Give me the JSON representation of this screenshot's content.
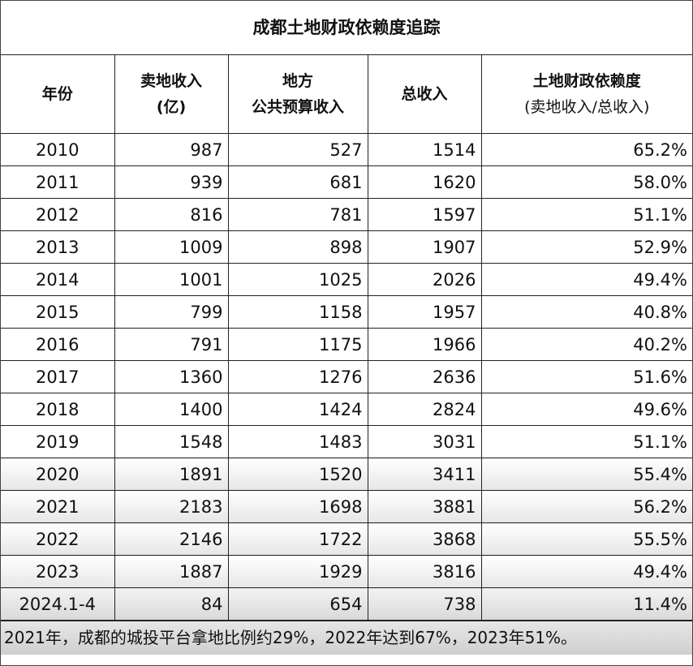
{
  "title": "成都土地财政依赖度追踪",
  "headers": {
    "year": "年份",
    "land_line1": "卖地收入",
    "land_line2": "(亿)",
    "budget_line1": "地方",
    "budget_line2": "公共预算收入",
    "total": "总收入",
    "dep_line1": "土地财政依赖度",
    "dep_line2": "(卖地收入/总收入)"
  },
  "chart_data": {
    "type": "table",
    "title": "成都土地财政依赖度追踪",
    "columns": [
      "年份",
      "卖地收入(亿)",
      "地方公共预算收入",
      "总收入",
      "土地财政依赖度(卖地收入/总收入)"
    ],
    "rows": [
      [
        "2010",
        "987",
        "527",
        "1514",
        "65.2%"
      ],
      [
        "2011",
        "939",
        "681",
        "1620",
        "58.0%"
      ],
      [
        "2012",
        "816",
        "781",
        "1597",
        "51.1%"
      ],
      [
        "2013",
        "1009",
        "898",
        "1907",
        "52.9%"
      ],
      [
        "2014",
        "1001",
        "1025",
        "2026",
        "49.4%"
      ],
      [
        "2015",
        "799",
        "1158",
        "1957",
        "40.8%"
      ],
      [
        "2016",
        "791",
        "1175",
        "1966",
        "40.2%"
      ],
      [
        "2017",
        "1360",
        "1276",
        "2636",
        "51.6%"
      ],
      [
        "2018",
        "1400",
        "1424",
        "2824",
        "49.6%"
      ],
      [
        "2019",
        "1548",
        "1483",
        "3031",
        "51.1%"
      ],
      [
        "2020",
        "1891",
        "1520",
        "3411",
        "55.4%"
      ],
      [
        "2021",
        "2183",
        "1698",
        "3881",
        "56.2%"
      ],
      [
        "2022",
        "2146",
        "1722",
        "3868",
        "55.5%"
      ],
      [
        "2023",
        "1887",
        "1929",
        "3816",
        "49.4%"
      ],
      [
        "2024.1-4",
        "84",
        "654",
        "738",
        "11.4%"
      ]
    ]
  },
  "note": "2021年，成都的城投平台拿地比例约29%，2022年达到67%，2023年51%。"
}
